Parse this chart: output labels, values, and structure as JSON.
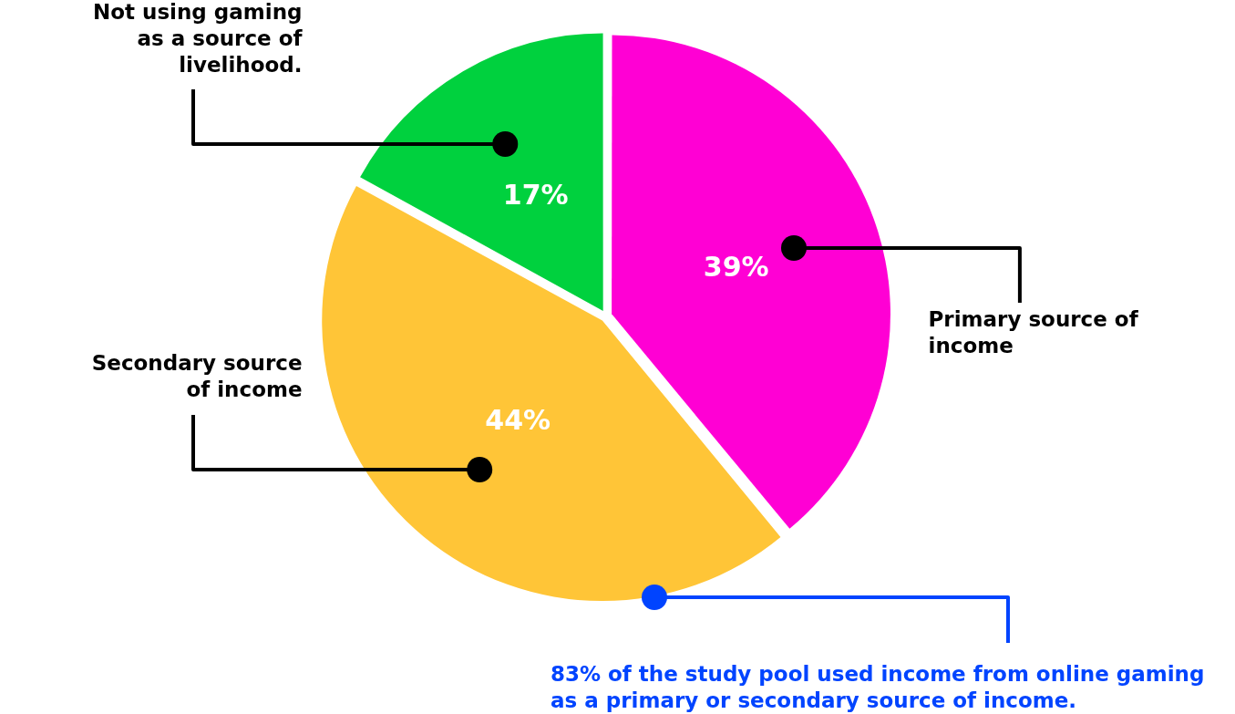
{
  "chart_data": {
    "type": "pie",
    "categories": [
      "Primary source of income",
      "Secondary source of income",
      "Not using gaming as a source of livelihood."
    ],
    "values": [
      39,
      44,
      17
    ],
    "colors": [
      "#ff00d4",
      "#ffc537",
      "#00d13e"
    ],
    "value_labels": [
      "39%",
      "44%",
      "17%"
    ],
    "legend": false,
    "annotations": [
      "83% of the study pool used income from online gaming as a primary or secondary source of income."
    ]
  }
}
